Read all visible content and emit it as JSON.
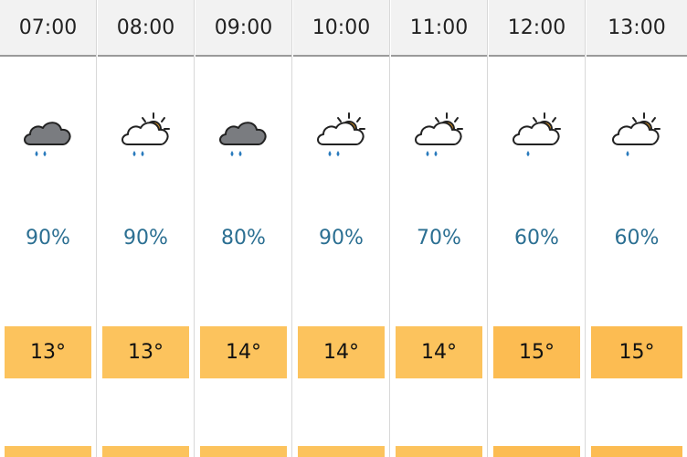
{
  "forecast": {
    "columns": [
      {
        "time": "07:00",
        "icon": "rain-cloud-icon",
        "precip": "90%",
        "temp": "13°"
      },
      {
        "time": "08:00",
        "icon": "sun-cloud-rain-icon",
        "precip": "90%",
        "temp": "13°"
      },
      {
        "time": "09:00",
        "icon": "rain-cloud-icon",
        "precip": "80%",
        "temp": "14°"
      },
      {
        "time": "10:00",
        "icon": "sun-cloud-rain-icon",
        "precip": "90%",
        "temp": "14°"
      },
      {
        "time": "11:00",
        "icon": "sun-cloud-rain-icon",
        "precip": "70%",
        "temp": "14°"
      },
      {
        "time": "12:00",
        "icon": "sun-cloud-light-rain-icon",
        "precip": "60%",
        "temp": "15°"
      },
      {
        "time": "13:00",
        "icon": "sun-cloud-light-rain-icon",
        "precip": "60%",
        "temp": "15°"
      }
    ]
  },
  "colors": {
    "header_bg": "#f2f2f2",
    "precip_text": "#2b6f92",
    "temp_13": "#fcc35d",
    "temp_14": "#fcc35d",
    "temp_15": "#fcbc52",
    "sun": "#f5a623",
    "rain": "#2a7bbd",
    "dark_cloud": "#7a7c80"
  }
}
